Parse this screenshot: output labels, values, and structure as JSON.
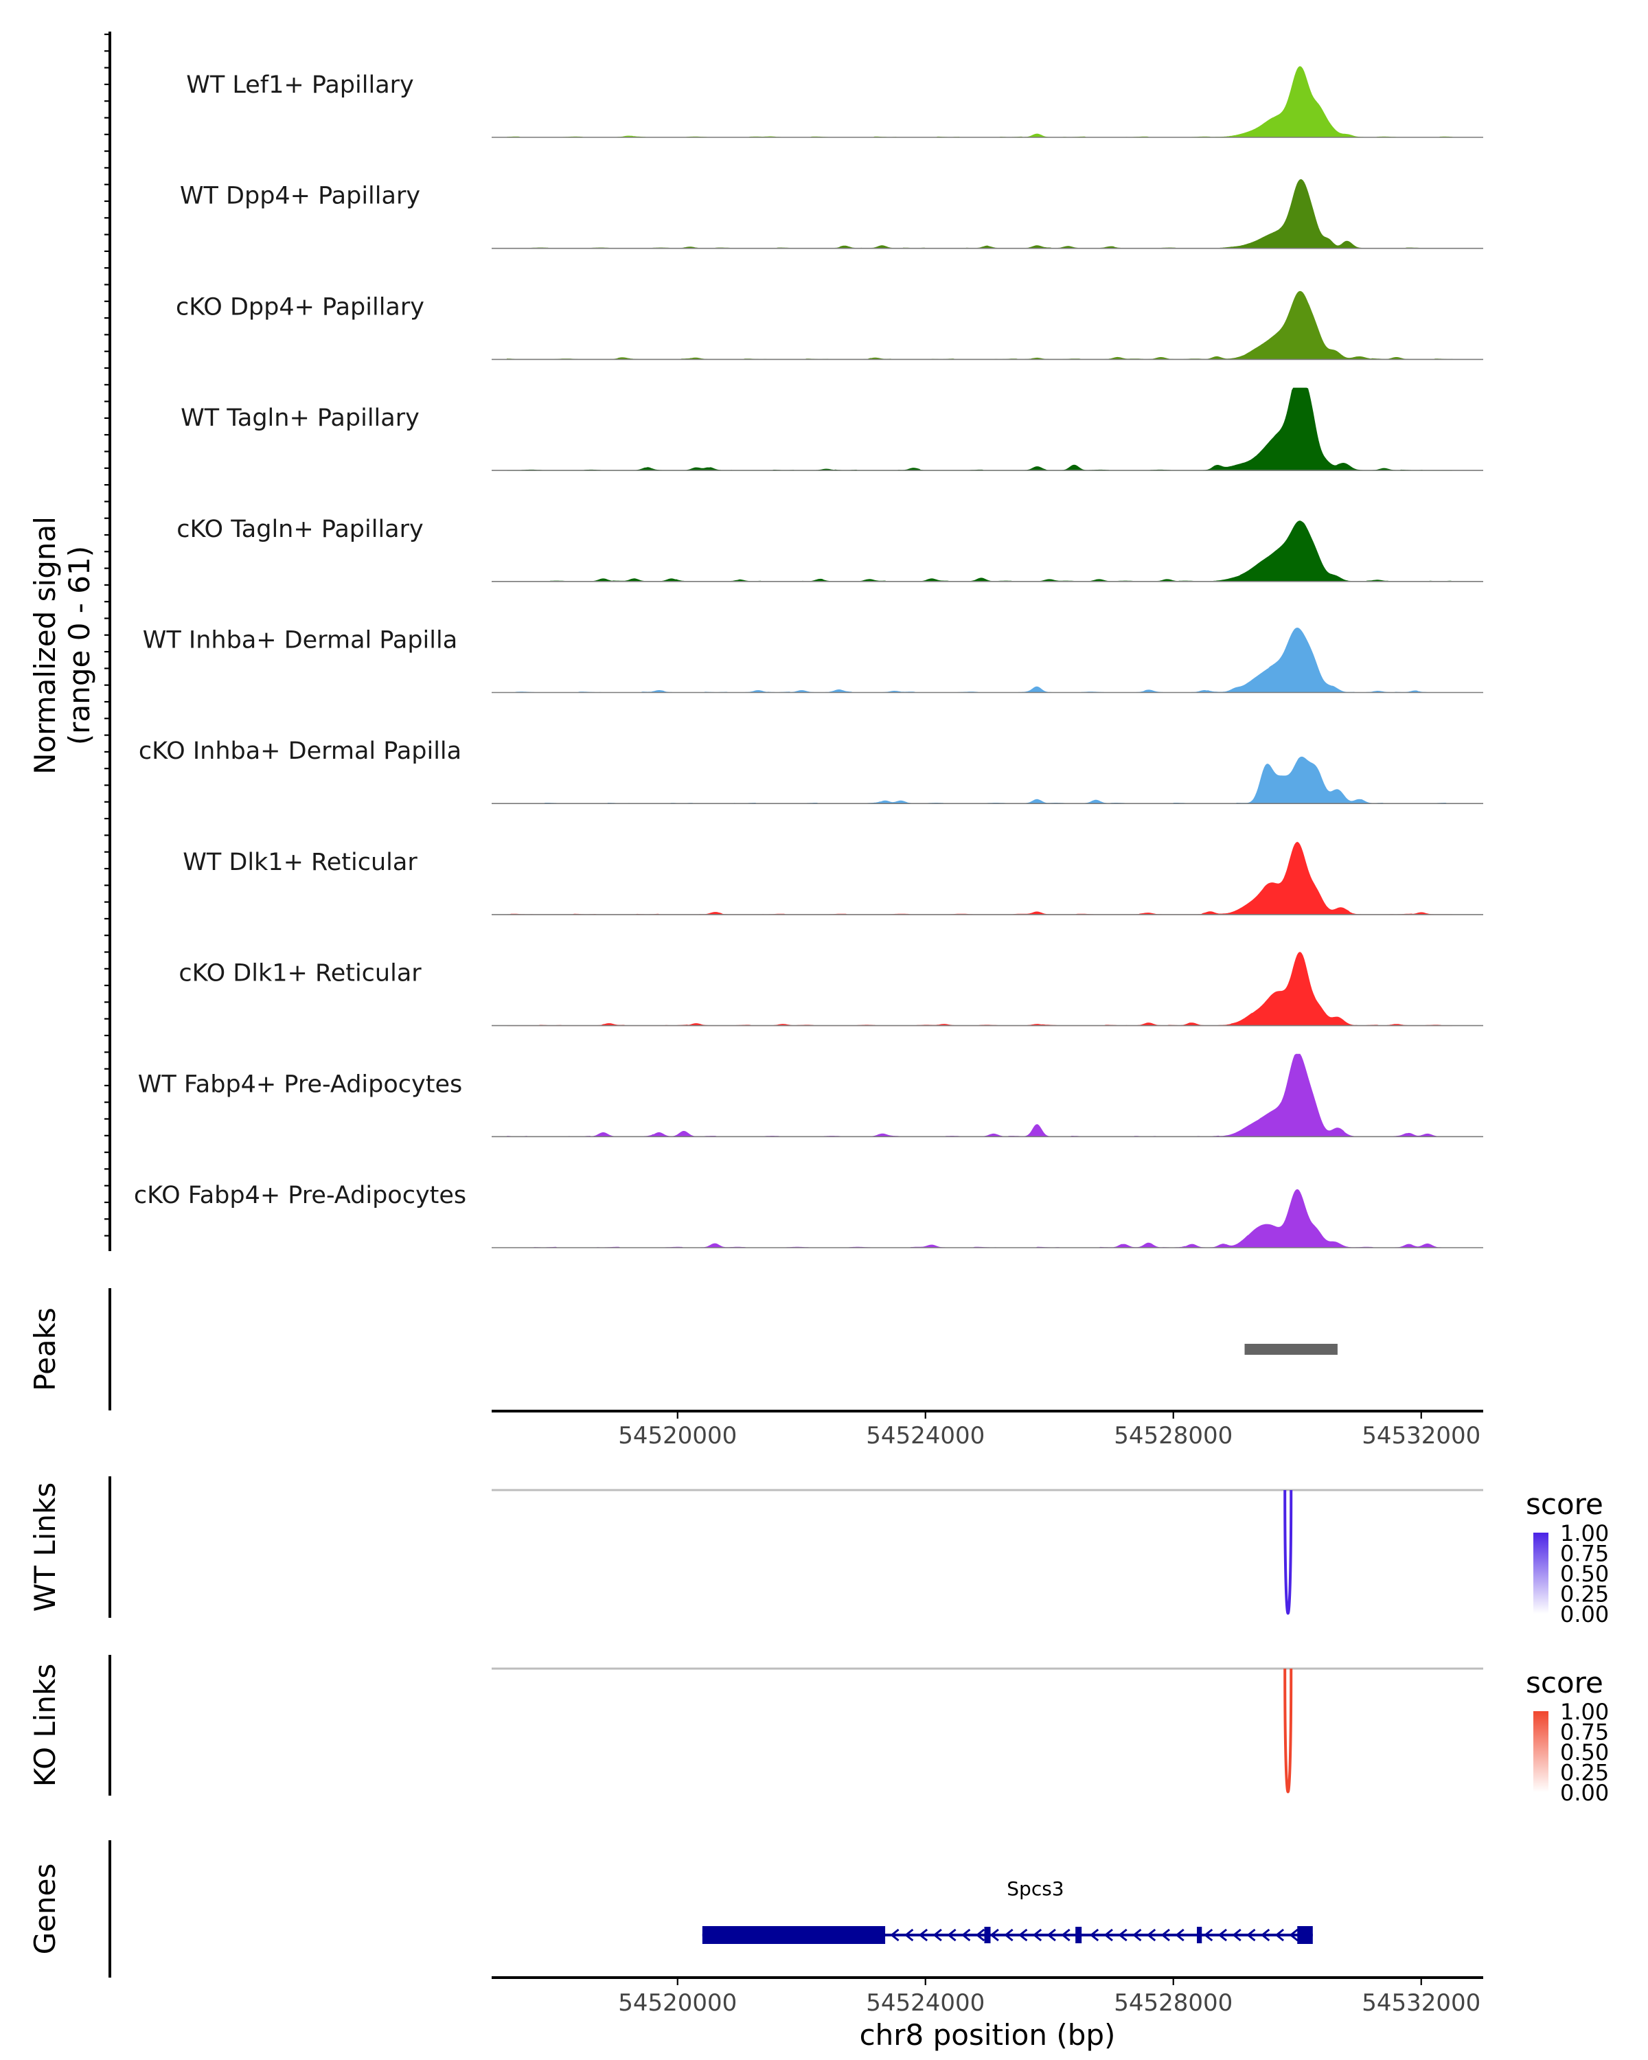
{
  "chart_data": {
    "type": "area",
    "description_free": true,
    "signal_panel": {
      "ylabel": "Normalized signal",
      "yrange_label": "(range 0 - 61)",
      "ylim": [
        0,
        61
      ],
      "tracks": [
        {
          "name": "WT Lef1+ Papillary",
          "color": "#7ACC1C",
          "background": [
            [
              54519200,
              0.8
            ],
            [
              54521500,
              0.5
            ],
            [
              54525800,
              2.5
            ]
          ],
          "peaks": [
            [
              54529400,
              5,
              250
            ],
            [
              54529700,
              12,
              180
            ],
            [
              54530050,
              50,
              140
            ],
            [
              54530350,
              18,
              110
            ],
            [
              54530550,
              5,
              100
            ],
            [
              54530800,
              2,
              90
            ]
          ]
        },
        {
          "name": "WT Dpp4+ Papillary",
          "color": "#4E8A0E",
          "background": [
            [
              54520200,
              1
            ],
            [
              54522700,
              1.5
            ],
            [
              54523300,
              2
            ],
            [
              54525000,
              1.5
            ],
            [
              54525800,
              2
            ],
            [
              54526300,
              1.5
            ],
            [
              54527000,
              1
            ]
          ],
          "peaks": [
            [
              54529300,
              3,
              200
            ],
            [
              54529550,
              6,
              160
            ],
            [
              54529800,
              10,
              160
            ],
            [
              54530050,
              45,
              130
            ],
            [
              54530250,
              15,
              110
            ],
            [
              54530500,
              6,
              80
            ],
            [
              54530800,
              5,
              80
            ]
          ]
        },
        {
          "name": "cKO Dpp4+ Papillary",
          "color": "#5A9410",
          "background": [
            [
              54519100,
              1
            ],
            [
              54520300,
              1
            ],
            [
              54523200,
              1
            ],
            [
              54525800,
              1
            ],
            [
              54527100,
              1.5
            ],
            [
              54527800,
              1.5
            ],
            [
              54528700,
              2
            ],
            [
              54531600,
              1.5
            ]
          ],
          "peaks": [
            [
              54529450,
              8,
              220
            ],
            [
              54529750,
              14,
              180
            ],
            [
              54530050,
              45,
              150
            ],
            [
              54530300,
              15,
              120
            ],
            [
              54530600,
              6,
              100
            ],
            [
              54531000,
              2,
              100
            ]
          ]
        },
        {
          "name": "WT Tagln+ Papillary",
          "color": "#046400",
          "background": [
            [
              54519500,
              2
            ],
            [
              54520300,
              2
            ],
            [
              54520500,
              2
            ],
            [
              54522400,
              1
            ],
            [
              54523800,
              1.5
            ],
            [
              54525800,
              2.5
            ],
            [
              54526400,
              4
            ],
            [
              54528700,
              3
            ],
            [
              54531400,
              1.5
            ]
          ],
          "peaks": [
            [
              54529100,
              4,
              200
            ],
            [
              54529500,
              12,
              180
            ],
            [
              54529750,
              20,
              160
            ],
            [
              54530000,
              58,
              120
            ],
            [
              54530200,
              40,
              110
            ],
            [
              54530450,
              6,
              100
            ],
            [
              54530750,
              5,
              100
            ]
          ]
        },
        {
          "name": "cKO Tagln+ Papillary",
          "color": "#036600",
          "background": [
            [
              54518800,
              2
            ],
            [
              54519300,
              2
            ],
            [
              54519900,
              2
            ],
            [
              54521000,
              1
            ],
            [
              54522300,
              1.5
            ],
            [
              54523100,
              1.5
            ],
            [
              54524100,
              2
            ],
            [
              54524900,
              2.5
            ],
            [
              54526000,
              1.5
            ],
            [
              54526800,
              1.5
            ],
            [
              54527900,
              1.5
            ],
            [
              54531300,
              1
            ]
          ],
          "peaks": [
            [
              54529100,
              3,
              200
            ],
            [
              54529450,
              12,
              180
            ],
            [
              54529750,
              18,
              160
            ],
            [
              54530050,
              40,
              150
            ],
            [
              54530300,
              14,
              120
            ],
            [
              54530600,
              4,
              100
            ]
          ]
        },
        {
          "name": "WT Inhba+ Dermal Papilla",
          "color": "#5BA9E6",
          "background": [
            [
              54519700,
              1.5
            ],
            [
              54521300,
              1.5
            ],
            [
              54522000,
              1.5
            ],
            [
              54522600,
              2
            ],
            [
              54523500,
              1
            ],
            [
              54525800,
              4
            ],
            [
              54527600,
              1.5
            ],
            [
              54528500,
              1.5
            ],
            [
              54529000,
              1.5
            ],
            [
              54531300,
              1
            ],
            [
              54531900,
              1
            ]
          ],
          "peaks": [
            [
              54529400,
              10,
              220
            ],
            [
              54529700,
              14,
              180
            ],
            [
              54530000,
              42,
              150
            ],
            [
              54530250,
              18,
              120
            ],
            [
              54530550,
              4,
              100
            ]
          ]
        },
        {
          "name": "cKO Inhba+ Dermal Papilla",
          "color": "#5BA9E6",
          "background": [
            [
              54523350,
              2
            ],
            [
              54523600,
              2
            ],
            [
              54525800,
              3
            ],
            [
              54526750,
              2.5
            ]
          ],
          "peaks": [
            [
              54529500,
              26,
              100
            ],
            [
              54529750,
              18,
              130
            ],
            [
              54530050,
              30,
              120
            ],
            [
              54530300,
              24,
              120
            ],
            [
              54530650,
              10,
              100
            ],
            [
              54531000,
              3,
              80
            ]
          ]
        },
        {
          "name": "WT Dlk1+ Reticular",
          "color": "#FF2A2A",
          "background": [
            [
              54520600,
              1.5
            ],
            [
              54525800,
              2
            ],
            [
              54527600,
              1
            ],
            [
              54528600,
              2
            ],
            [
              54532000,
              1.5
            ]
          ],
          "peaks": [
            [
              54529300,
              8,
              200
            ],
            [
              54529600,
              20,
              160
            ],
            [
              54530000,
              52,
              140
            ],
            [
              54530300,
              15,
              120
            ],
            [
              54530700,
              5,
              100
            ]
          ]
        },
        {
          "name": "cKO Dlk1+ Reticular",
          "color": "#FF2A2A",
          "background": [
            [
              54518900,
              1.5
            ],
            [
              54520300,
              1.5
            ],
            [
              54521700,
              1
            ],
            [
              54524300,
              1
            ],
            [
              54525800,
              1
            ],
            [
              54527600,
              2
            ],
            [
              54528300,
              2
            ],
            [
              54531600,
              1
            ]
          ],
          "peaks": [
            [
              54529400,
              10,
              220
            ],
            [
              54529700,
              20,
              160
            ],
            [
              54530050,
              52,
              130
            ],
            [
              54530350,
              12,
              110
            ],
            [
              54530650,
              6,
              100
            ]
          ]
        },
        {
          "name": "WT Fabp4+ Pre-Adipocytes",
          "color": "#A33AE6",
          "background": [
            [
              54518800,
              3
            ],
            [
              54519700,
              3
            ],
            [
              54520100,
              4
            ],
            [
              54523300,
              2
            ],
            [
              54525100,
              2
            ],
            [
              54525800,
              9
            ],
            [
              54531800,
              2.5
            ],
            [
              54532100,
              2
            ]
          ],
          "peaks": [
            [
              54529300,
              8,
              200
            ],
            [
              54529650,
              16,
              180
            ],
            [
              54530000,
              58,
              140
            ],
            [
              54530250,
              20,
              120
            ],
            [
              54530650,
              6,
              100
            ]
          ]
        },
        {
          "name": "cKO Fabp4+ Pre-Adipocytes",
          "color": "#A33AE6",
          "background": [
            [
              54520600,
              3
            ],
            [
              54524100,
              2
            ],
            [
              54527200,
              2.5
            ],
            [
              54527600,
              3.5
            ],
            [
              54528300,
              2.5
            ],
            [
              54528800,
              2.5
            ],
            [
              54531800,
              2.5
            ],
            [
              54532100,
              2.5
            ]
          ],
          "peaks": [
            [
              54529400,
              14,
              200
            ],
            [
              54529650,
              8,
              150
            ],
            [
              54530000,
              42,
              130
            ],
            [
              54530300,
              12,
              110
            ],
            [
              54530600,
              4,
              100
            ]
          ]
        }
      ]
    },
    "peaks_panel": {
      "ylabel": "Peaks",
      "peaks": [
        [
          54529150,
          54530650
        ]
      ],
      "color": "#646464"
    },
    "links_panels": [
      {
        "ylabel": "WT Links",
        "legend_title": "score",
        "color": "#4B23E6",
        "legend_ticks": [
          "1.00",
          "0.75",
          "0.50",
          "0.25",
          "0.00"
        ],
        "links": [
          [
            54529800,
            54529900,
            1.0
          ]
        ]
      },
      {
        "ylabel": "KO Links",
        "legend_title": "score",
        "color": "#F0462D",
        "legend_ticks": [
          "1.00",
          "0.75",
          "0.50",
          "0.25",
          "0.00"
        ],
        "links": [
          [
            54529800,
            54529900,
            1.0
          ]
        ]
      }
    ],
    "genes_panel": {
      "ylabel": "Genes",
      "color": "#000096",
      "gene": {
        "name": "Spcs3",
        "strand": "-",
        "start": 54520400,
        "end": 54530250,
        "exons": [
          [
            54520400,
            54523350
          ],
          [
            54524950,
            54525050
          ],
          [
            54526420,
            54526520
          ],
          [
            54528380,
            54528460
          ],
          [
            54530000,
            54530250
          ]
        ]
      }
    },
    "xaxis": {
      "xlim": [
        54517000,
        54533000
      ],
      "ticks": [
        54520000,
        54524000,
        54528000,
        54532000
      ],
      "tick_labels": [
        "54520000",
        "54524000",
        "54528000",
        "54532000"
      ],
      "xlabel": "chr8 position (bp)"
    }
  }
}
